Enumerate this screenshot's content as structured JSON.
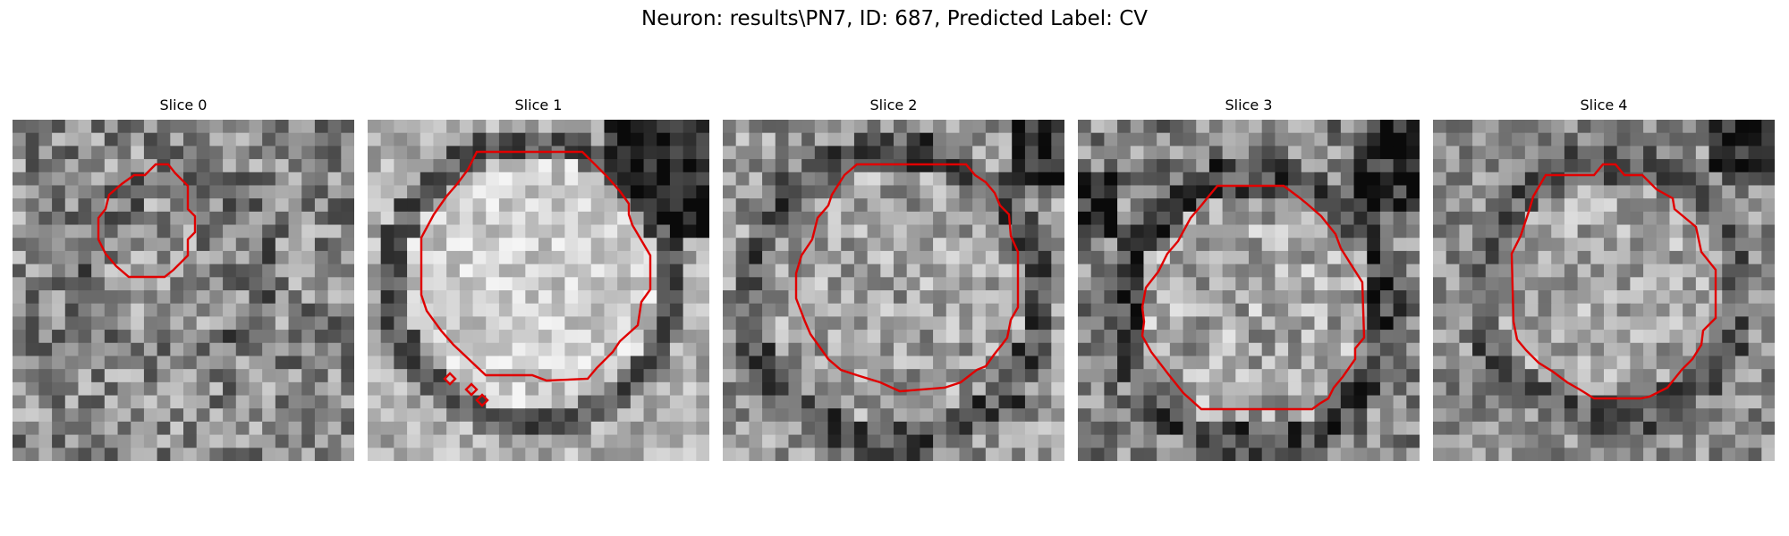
{
  "figure": {
    "title": "Neuron: results\\PN7, ID: 687, Predicted Label: CV"
  },
  "colors": {
    "contour": "#e00000",
    "background": "#ffffff"
  },
  "slices": [
    {
      "title": "Slice 0"
    },
    {
      "title": "Slice 1"
    },
    {
      "title": "Slice 2"
    },
    {
      "title": "Slice 3"
    },
    {
      "title": "Slice 4"
    }
  ]
}
